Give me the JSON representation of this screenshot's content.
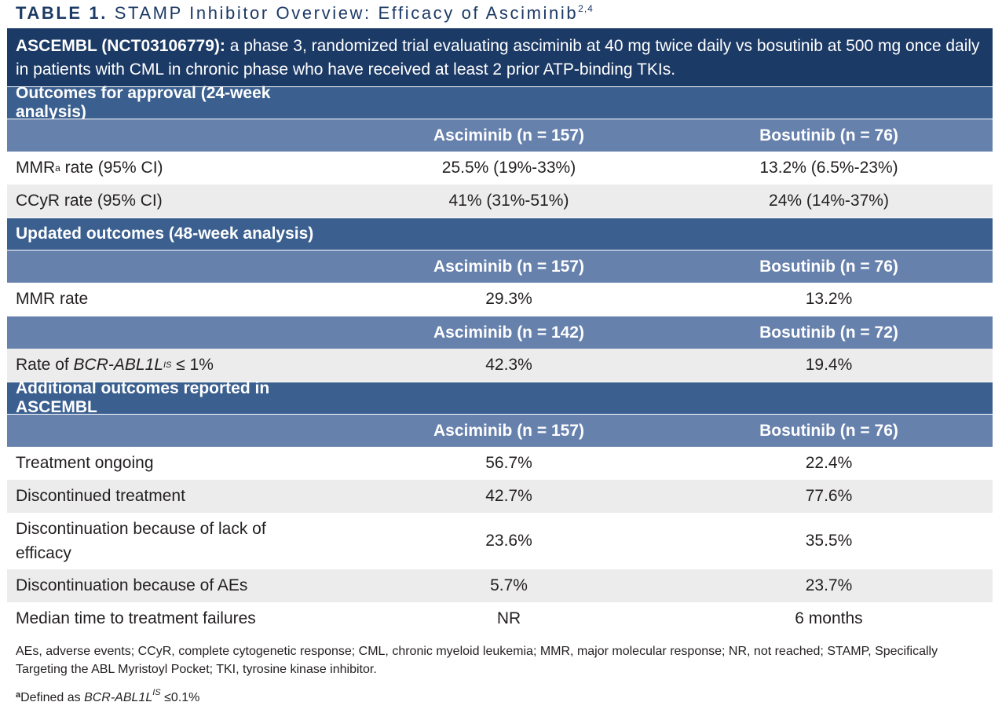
{
  "title": {
    "label": "TABLE 1.",
    "text": "STAMP Inhibitor Overview: Efficacy of Asciminib",
    "refs": "2,4"
  },
  "intro": {
    "bold": "ASCEMBL (NCT03106779):",
    "text": "a phase 3, randomized trial evaluating asciminib at 40 mg twice daily vs bosutinib at 500 mg once daily in patients with CML in chronic phase who have received at least 2 prior ATP-binding TKIs."
  },
  "sections": {
    "s1": "Outcomes for approval (24-week analysis)",
    "s2": "Updated outcomes (48-week analysis)",
    "s3": "Additional outcomes reported in ASCEMBL"
  },
  "headers": {
    "asc157": "Asciminib (n = 157)",
    "bos76": "Bosutinib (n = 76)",
    "asc142": "Asciminib (n = 142)",
    "bos72": "Bosutinib (n = 72)"
  },
  "rows": {
    "mmr95": {
      "label_pre": "MMR",
      "label_sup": "a",
      "label_post": " rate (95% CI)",
      "asc": "25.5% (19%-33%)",
      "bos": "13.2% (6.5%-23%)"
    },
    "ccyr": {
      "label": "CCyR rate (95% CI)",
      "asc": "41% (31%-51%)",
      "bos": "24% (14%-37%)"
    },
    "mmr48": {
      "label": "MMR rate",
      "asc": "29.3%",
      "bos": "13.2%"
    },
    "bcr": {
      "label_pre": "Rate of ",
      "label_gene": "BCR-ABL1L",
      "label_sup": "IS",
      "label_post": " ≤ 1%",
      "asc": "42.3%",
      "bos": "19.4%"
    },
    "ongoing": {
      "label": "Treatment ongoing",
      "asc": "56.7%",
      "bos": "22.4%"
    },
    "disc": {
      "label": "Discontinued treatment",
      "asc": "42.7%",
      "bos": "77.6%"
    },
    "disc_eff": {
      "label": "Discontinuation because of lack of efficacy",
      "asc": "23.6%",
      "bos": "35.5%"
    },
    "disc_ae": {
      "label": "Discontinuation because of AEs",
      "asc": "5.7%",
      "bos": "23.7%"
    },
    "median": {
      "label": "Median time to treatment failures",
      "asc": "NR",
      "bos": "6 months"
    }
  },
  "footnote": {
    "abbrev": "AEs, adverse events; CCyR, complete cytogenetic response; CML, chronic myeloid leukemia; MMR, major molecular response; NR, not reached; STAMP, Specifically Targeting the ABL Myristoyl Pocket; TKI, tyrosine kinase inhibitor.",
    "mark": "a",
    "note_pre": "Defined as ",
    "note_gene": "BCR-ABL1L",
    "note_sup": "IS",
    "note_post": " ≤0.1%"
  }
}
